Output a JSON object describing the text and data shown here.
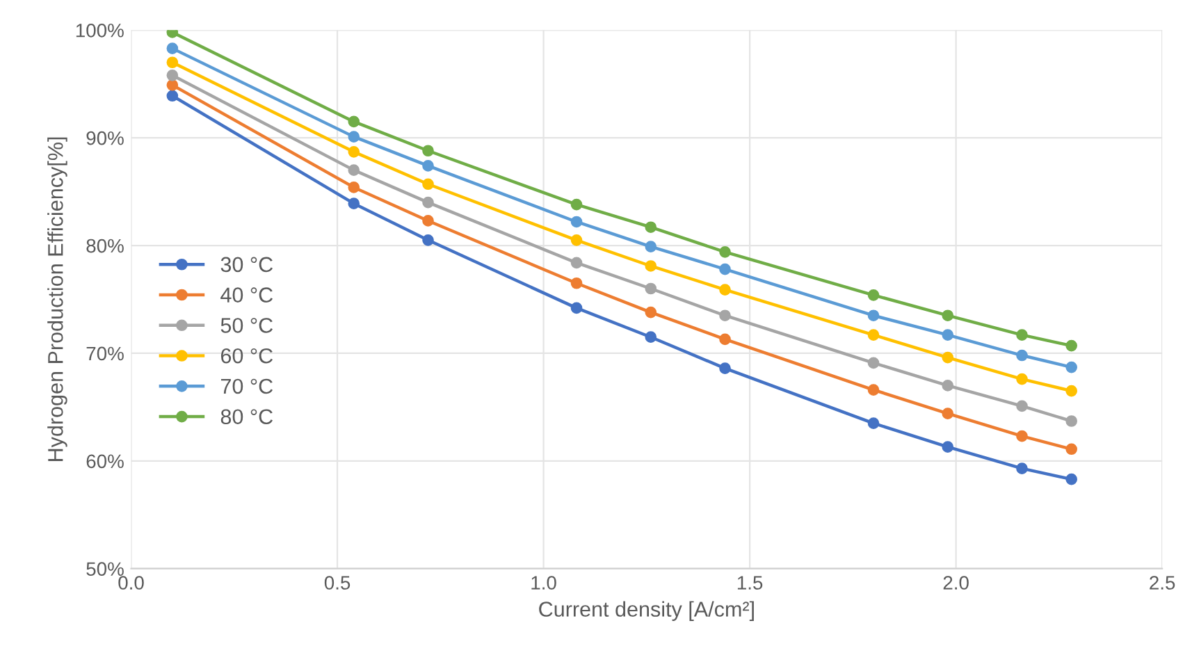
{
  "chart_data": {
    "type": "line",
    "xlabel": "Current density [A/cm²]",
    "ylabel": "Hydrogen Production Efficiency[%]",
    "x": [
      0.1,
      0.54,
      0.72,
      1.08,
      1.26,
      1.44,
      1.8,
      1.98,
      2.16,
      2.28
    ],
    "xlim": [
      0,
      2.5
    ],
    "xticks": [
      {
        "value": 0,
        "label": "0.0"
      },
      {
        "value": 0.5,
        "label": "0.5"
      },
      {
        "value": 1,
        "label": "1.0"
      },
      {
        "value": 1.5,
        "label": "1.5"
      },
      {
        "value": 2,
        "label": "2.0"
      },
      {
        "value": 2.5,
        "label": "2.5"
      }
    ],
    "ylim": [
      50,
      100
    ],
    "yticks": [
      {
        "value": 50,
        "label": "50%"
      },
      {
        "value": 60,
        "label": "60%"
      },
      {
        "value": 70,
        "label": "70%"
      },
      {
        "value": 80,
        "label": "80%"
      },
      {
        "value": 90,
        "label": "90%"
      },
      {
        "value": 100,
        "label": "100%"
      }
    ],
    "grid": true,
    "legend": "left",
    "marker": "circle",
    "line_style": "solid",
    "series": [
      {
        "name": "30 °C",
        "color": "#4472c4",
        "values": [
          93.9,
          83.9,
          80.5,
          74.2,
          71.5,
          68.6,
          63.5,
          61.3,
          59.3,
          58.3
        ]
      },
      {
        "name": "40 °C",
        "color": "#ed7d31",
        "values": [
          94.9,
          85.4,
          82.3,
          76.5,
          73.8,
          71.3,
          66.6,
          64.4,
          62.3,
          61.1
        ]
      },
      {
        "name": "50 °C",
        "color": "#a5a5a5",
        "values": [
          95.8,
          87.0,
          84.0,
          78.4,
          76.0,
          73.5,
          69.1,
          67.0,
          65.1,
          63.7
        ]
      },
      {
        "name": "60 °C",
        "color": "#ffc000",
        "values": [
          97.0,
          88.7,
          85.7,
          80.5,
          78.1,
          75.9,
          71.7,
          69.6,
          67.6,
          66.5
        ]
      },
      {
        "name": "70 °C",
        "color": "#5b9bd5",
        "values": [
          98.3,
          90.1,
          87.4,
          82.2,
          79.9,
          77.8,
          73.5,
          71.7,
          69.8,
          68.7
        ]
      },
      {
        "name": "80 °C",
        "color": "#70ad47",
        "values": [
          99.8,
          91.5,
          88.8,
          83.8,
          81.7,
          79.4,
          75.4,
          73.5,
          71.7,
          70.7
        ]
      }
    ]
  }
}
